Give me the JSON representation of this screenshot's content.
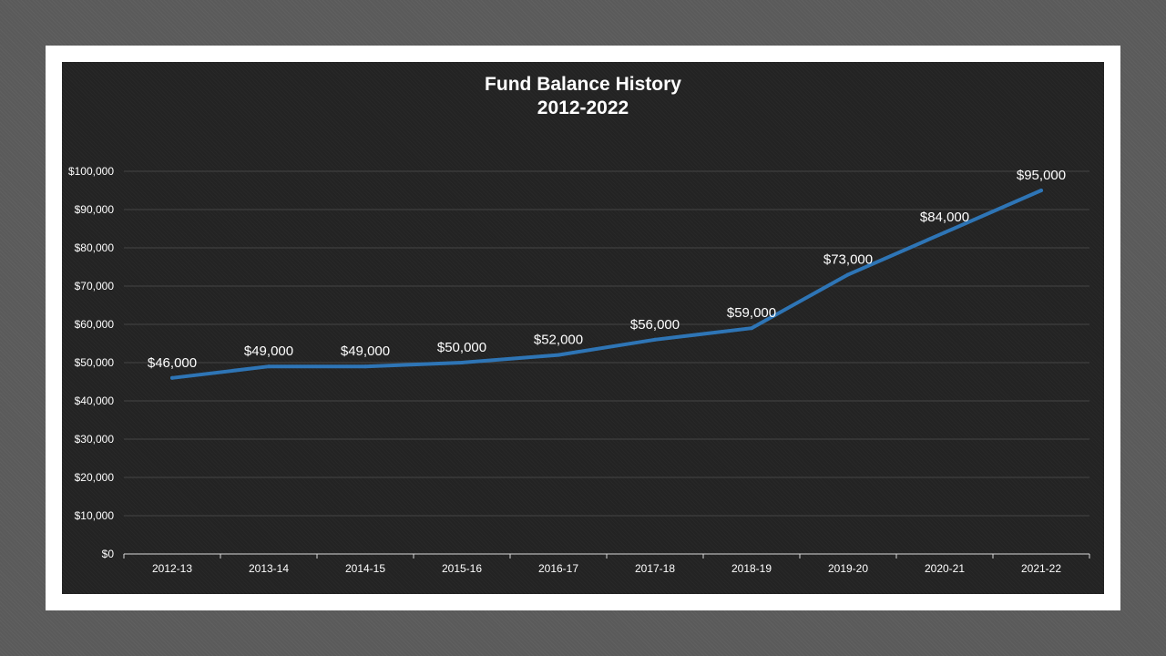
{
  "chart_data": {
    "type": "line",
    "title": "Fund Balance History",
    "subtitle": "2012-2022",
    "categories": [
      "2012-13",
      "2013-14",
      "2014-15",
      "2015-16",
      "2016-17",
      "2017-18",
      "2018-19",
      "2019-20",
      "2020-21",
      "2021-22"
    ],
    "series": [
      {
        "values": [
          46000,
          49000,
          49000,
          50000,
          52000,
          56000,
          59000,
          73000,
          84000,
          95000
        ],
        "data_labels": [
          "$46,000",
          "$49,000",
          "$49,000",
          "$50,000",
          "$52,000",
          "$56,000",
          "$59,000",
          "$73,000",
          "$84,000",
          "$95,000"
        ],
        "color": "#2e75b6"
      }
    ],
    "ylim": [
      0,
      100000
    ],
    "y_ticks": [
      0,
      10000,
      20000,
      30000,
      40000,
      50000,
      60000,
      70000,
      80000,
      90000,
      100000
    ],
    "y_tick_labels": [
      "$0",
      "$10,000",
      "$20,000",
      "$30,000",
      "$40,000",
      "$50,000",
      "$60,000",
      "$70,000",
      "$80,000",
      "$90,000",
      "$100,000"
    ],
    "xlabel": "",
    "ylabel": "",
    "grid": true,
    "legend": "none",
    "colors": {
      "background": "#232323",
      "frame": "#ffffff",
      "page": "#5a5a5a",
      "gridline": "#444444",
      "axis": "#d9d9d9",
      "text": "#ffffff"
    }
  }
}
